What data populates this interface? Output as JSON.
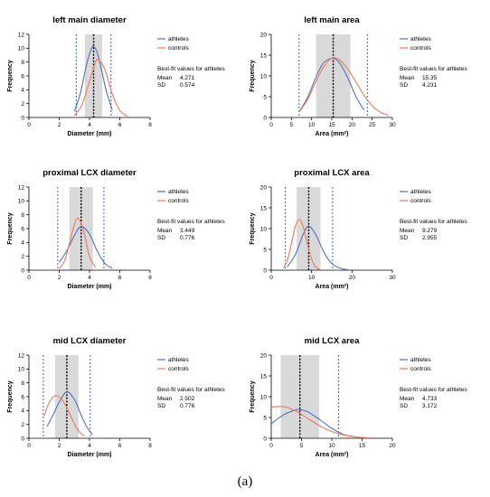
{
  "caption": "(a)",
  "colors": {
    "athletes": "#4f72c0",
    "controls": "#ec7b53",
    "band": "#d9d9d9",
    "sd_line": "#3b5fd0"
  },
  "chart_data": [
    {
      "type": "line",
      "title": "left main diameter",
      "xlabel": "Diameter (mm)",
      "ylabel": "Frequency",
      "xlim": [
        0,
        8
      ],
      "ylim": [
        0,
        12
      ],
      "xticks": [
        0,
        2,
        4,
        6,
        8
      ],
      "yticks": [
        0,
        2,
        4,
        6,
        8,
        10,
        12
      ],
      "legend": [
        "athletes",
        "controls"
      ],
      "legend_position": "right",
      "band": [
        3.697,
        4.845
      ],
      "mean_line": 4.271,
      "sd_lines": [
        3.123,
        5.419
      ],
      "series": [
        {
          "name": "athletes",
          "x": [
            3.0,
            3.4,
            3.8,
            4.1,
            4.271,
            4.5,
            4.8,
            5.1,
            5.5
          ],
          "y": [
            0.9,
            3.5,
            7.6,
            9.8,
            10.2,
            9.4,
            6.8,
            3.9,
            1.1
          ]
        },
        {
          "name": "controls",
          "x": [
            3.0,
            3.5,
            4.0,
            4.4,
            4.6,
            5.0,
            5.5,
            6.0,
            6.5
          ],
          "y": [
            0.3,
            1.8,
            5.2,
            8.0,
            8.3,
            7.0,
            3.4,
            1.0,
            0.2
          ]
        }
      ],
      "fit_heading": "Best-fit values for athletes",
      "fit": [
        {
          "label": "Mean",
          "value": "4.271"
        },
        {
          "label": "SD",
          "value": "0.574"
        }
      ]
    },
    {
      "type": "line",
      "title": "left main area",
      "xlabel": "Area (mm²)",
      "ylabel": "Frequency",
      "xlim": [
        0,
        30
      ],
      "ylim": [
        0,
        20
      ],
      "xticks": [
        0,
        5,
        10,
        15,
        20,
        25,
        30
      ],
      "yticks": [
        0,
        5,
        10,
        15,
        20
      ],
      "legend": [
        "athletes",
        "controls"
      ],
      "legend_position": "right",
      "band": [
        11.1,
        19.6
      ],
      "mean_line": 15.35,
      "sd_lines": [
        6.9,
        23.8
      ],
      "series": [
        {
          "name": "athletes",
          "x": [
            7,
            9,
            11,
            13,
            15.35,
            17,
            19,
            21,
            23
          ],
          "y": [
            1.5,
            4.8,
            9.5,
            13.2,
            14.2,
            13.0,
            9.5,
            5.0,
            1.8
          ]
        },
        {
          "name": "controls",
          "x": [
            7,
            9,
            11,
            13,
            15,
            17,
            19,
            21,
            23,
            25,
            27,
            29
          ],
          "y": [
            1.4,
            4.3,
            8.5,
            12.2,
            14.3,
            13.8,
            11.6,
            8.5,
            5.3,
            2.8,
            1.3,
            0.5
          ]
        }
      ],
      "fit_heading": "Best-fit values for athletes",
      "fit": [
        {
          "label": "Mean",
          "value": "15.35"
        },
        {
          "label": "SD",
          "value": "4.231"
        }
      ]
    },
    {
      "type": "line",
      "title": "proximal LCX diameter",
      "xlabel": "Diameter (mm)",
      "ylabel": "Frequency",
      "xlim": [
        0,
        8
      ],
      "ylim": [
        0,
        12
      ],
      "xticks": [
        0,
        2,
        4,
        6,
        8
      ],
      "yticks": [
        0,
        2,
        4,
        6,
        8,
        10,
        12
      ],
      "legend": [
        "athletes",
        "controls"
      ],
      "legend_position": "right",
      "band": [
        2.673,
        4.225
      ],
      "mean_line": 3.449,
      "sd_lines": [
        1.9,
        4.95
      ],
      "series": [
        {
          "name": "athletes",
          "x": [
            2.0,
            2.5,
            3.0,
            3.449,
            4.0,
            4.5,
            5.0,
            5.5
          ],
          "y": [
            1.1,
            2.8,
            5.0,
            6.3,
            5.2,
            2.8,
            1.0,
            0.3
          ]
        },
        {
          "name": "controls",
          "x": [
            2.0,
            2.4,
            2.8,
            3.1,
            3.3,
            3.6,
            4.0,
            4.4
          ],
          "y": [
            0.2,
            1.6,
            5.0,
            7.2,
            7.4,
            5.8,
            2.0,
            0.4
          ]
        }
      ],
      "fit_heading": "Best-fit values for athletes",
      "fit": [
        {
          "label": "Mean",
          "value": "3.449"
        },
        {
          "label": "SD",
          "value": "0.776"
        }
      ]
    },
    {
      "type": "line",
      "title": "proximal LCX area",
      "xlabel": "Area (mm²)",
      "ylabel": "Frequency",
      "xlim": [
        0,
        30
      ],
      "ylim": [
        0,
        20
      ],
      "xticks": [
        0,
        10,
        20,
        30
      ],
      "yticks": [
        0,
        5,
        10,
        15,
        20
      ],
      "legend": [
        "athletes",
        "controls"
      ],
      "legend_position": "right",
      "band": [
        6.3,
        12.2
      ],
      "mean_line": 9.279,
      "sd_lines": [
        3.5,
        15.2
      ],
      "series": [
        {
          "name": "athletes",
          "x": [
            4,
            6,
            8,
            9.279,
            11,
            13,
            15,
            17,
            19
          ],
          "y": [
            0.8,
            3.8,
            8.8,
            10.6,
            8.6,
            4.4,
            1.6,
            0.5,
            0.1
          ]
        },
        {
          "name": "controls",
          "x": [
            3,
            4,
            5,
            6,
            7,
            8,
            9,
            10,
            11,
            12
          ],
          "y": [
            0.5,
            2.4,
            6.4,
            10.6,
            12.2,
            10.2,
            6.2,
            2.6,
            0.8,
            0.2
          ]
        }
      ],
      "fit_heading": "Best-fit values for athletes",
      "fit": [
        {
          "label": "Mean",
          "value": "9.279"
        },
        {
          "label": "SD",
          "value": "2.955"
        }
      ]
    },
    {
      "type": "line",
      "title": "mid LCX diameter",
      "xlabel": "Diameter (mm)",
      "ylabel": "Frequency",
      "xlim": [
        0,
        8
      ],
      "ylim": [
        0,
        12
      ],
      "xticks": [
        0,
        2,
        4,
        6,
        8
      ],
      "yticks": [
        0,
        2,
        4,
        6,
        8,
        10,
        12
      ],
      "legend": [
        "athletes",
        "controls"
      ],
      "legend_position": "right",
      "band": [
        1.726,
        3.278
      ],
      "mean_line": 2.502,
      "sd_lines": [
        0.95,
        4.05
      ],
      "series": [
        {
          "name": "athletes",
          "x": [
            1.2,
            1.6,
            2.0,
            2.502,
            3.0,
            3.4,
            3.8,
            4.2
          ],
          "y": [
            1.7,
            3.4,
            5.2,
            6.7,
            5.6,
            3.6,
            1.7,
            0.5
          ]
        },
        {
          "name": "controls",
          "x": [
            1.0,
            1.3,
            1.7,
            2.1,
            2.5,
            2.9,
            3.3,
            3.7
          ],
          "y": [
            3.2,
            5.0,
            6.1,
            5.8,
            4.4,
            2.5,
            1.0,
            0.3
          ]
        }
      ],
      "fit_heading": "Best-fit values for athletes",
      "fit": [
        {
          "label": "Mean",
          "value": "2.502"
        },
        {
          "label": "SD",
          "value": "0.776"
        }
      ]
    },
    {
      "type": "line",
      "title": "mid LCX area",
      "xlabel": "Area (mm²)",
      "ylabel": "Frequency",
      "xlim": [
        0,
        20
      ],
      "ylim": [
        0,
        20
      ],
      "xticks": [
        0,
        5,
        10,
        15,
        20
      ],
      "yticks": [
        0,
        5,
        10,
        15,
        20
      ],
      "legend": [
        "athletes",
        "controls"
      ],
      "legend_position": "right",
      "band": [
        1.56,
        7.9
      ],
      "mean_line": 4.733,
      "sd_lines": [
        11.1
      ],
      "series": [
        {
          "name": "athletes",
          "x": [
            0,
            2,
            4,
            4.733,
            6,
            8,
            10,
            12,
            14
          ],
          "y": [
            3.5,
            5.6,
            6.8,
            6.9,
            6.4,
            4.5,
            2.4,
            0.9,
            0.3
          ]
        },
        {
          "name": "controls",
          "x": [
            0,
            2,
            4,
            6,
            8,
            10,
            12,
            14,
            16
          ],
          "y": [
            7.5,
            7.6,
            6.6,
            4.8,
            3.0,
            1.6,
            0.8,
            0.3,
            0.1
          ]
        }
      ],
      "fit_heading": "Best-fit values for athletes",
      "fit": [
        {
          "label": "Mean",
          "value": "4.733"
        },
        {
          "label": "SD",
          "value": "3.172"
        }
      ]
    }
  ]
}
